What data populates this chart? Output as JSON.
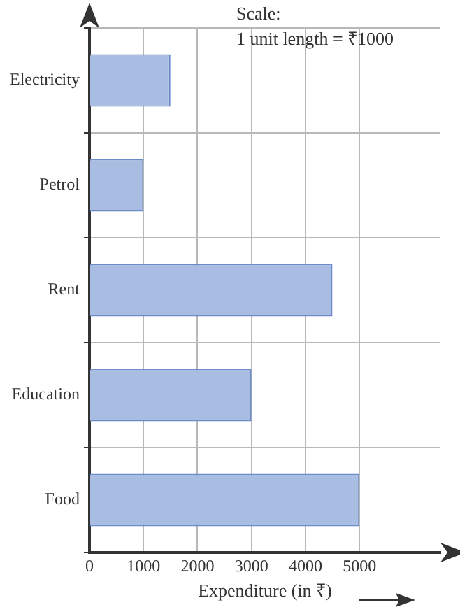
{
  "chart_data": {
    "type": "bar",
    "orientation": "horizontal",
    "xlabel": "Expenditure (in ₹)",
    "categories": [
      "Electricity",
      "Petrol",
      "Rent",
      "Education",
      "Food"
    ],
    "values": [
      1500,
      1000,
      4500,
      3000,
      5000
    ],
    "color": "#a9bde2",
    "xlim": [
      0,
      6500
    ],
    "xticks": [
      0,
      1000,
      2000,
      3000,
      4000,
      5000
    ],
    "grid": true,
    "annotations": [
      "Scale:",
      "1 unit length = ₹1000"
    ]
  }
}
